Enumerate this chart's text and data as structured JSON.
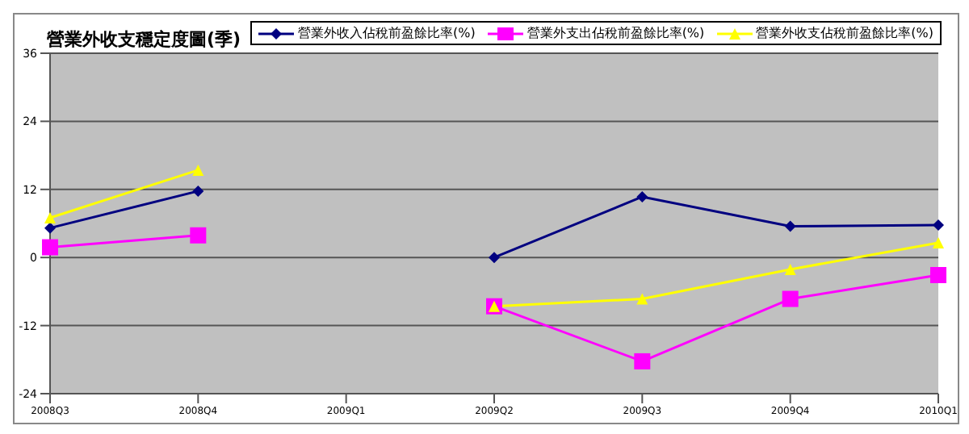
{
  "chart_data": {
    "type": "line",
    "title": "營業外收支穩定度圖(季)",
    "categories": [
      "2008Q3",
      "2008Q4",
      "2009Q1",
      "2009Q2",
      "2009Q3",
      "2009Q4",
      "2010Q1"
    ],
    "series": [
      {
        "name": "營業外收入佔稅前盈餘比率(%)",
        "color": "#000080",
        "marker": "diamond",
        "values": [
          5.2,
          11.7,
          null,
          0,
          10.7,
          5.5,
          5.7
        ]
      },
      {
        "name": "營業外支出佔稅前盈餘比率(%)",
        "color": "#ff00ff",
        "marker": "square",
        "values": [
          1.8,
          3.9,
          null,
          -8.6,
          -18.3,
          -7.3,
          -3.1
        ]
      },
      {
        "name": "營業外收支佔稅前盈餘比率(%)",
        "color": "#ffff00",
        "marker": "triangle",
        "values": [
          7,
          15.4,
          null,
          -8.6,
          -7.3,
          -2.1,
          2.6
        ]
      }
    ],
    "ylim": [
      -24,
      36
    ],
    "yticks": [
      -24,
      -12,
      0,
      12,
      24,
      36
    ],
    "grid": "y",
    "legend": "top right"
  }
}
